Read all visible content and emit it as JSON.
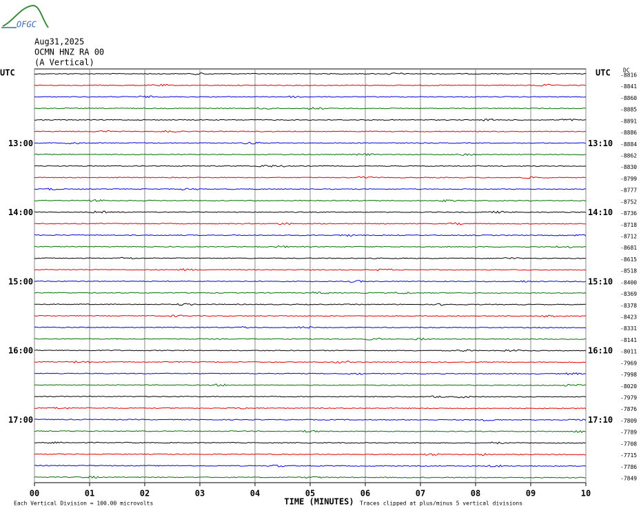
{
  "logo": "OFGC",
  "chart_data": {
    "type": "helicorder",
    "title_lines": [
      "Aug31,2025",
      "OCMN HNZ RA 00",
      "(A Vertical)"
    ],
    "left_axis_label": "UTC",
    "right_axis_label": "UTC",
    "dc_label": "DC",
    "x_label": "TIME (MINUTES)",
    "scale_note": "Each Vertical Division =  100.00 microvolts",
    "clip_note": "Traces clipped at plus/minus 5 vertical divisions",
    "xlim": [
      0,
      10
    ],
    "xticks": [
      {
        "value": 0,
        "label": "00"
      },
      {
        "value": 1,
        "label": "01"
      },
      {
        "value": 2,
        "label": "02"
      },
      {
        "value": 3,
        "label": "03"
      },
      {
        "value": 4,
        "label": "04"
      },
      {
        "value": 5,
        "label": "05"
      },
      {
        "value": 6,
        "label": "06"
      },
      {
        "value": 7,
        "label": "07"
      },
      {
        "value": 8,
        "label": "08"
      },
      {
        "value": 9,
        "label": "09"
      },
      10
    ],
    "grid": true,
    "colors": [
      "#000000",
      "#e00000",
      "#0000e0",
      "#007000"
    ],
    "left_labels": [
      null,
      null,
      null,
      null,
      null,
      null,
      "13:00",
      null,
      null,
      null,
      null,
      null,
      "14:00",
      null,
      null,
      null,
      null,
      null,
      "15:00",
      null,
      null,
      null,
      null,
      null,
      "16:00",
      null,
      null,
      null,
      null,
      null,
      "17:00",
      null,
      null,
      null,
      null,
      null
    ],
    "right_labels": [
      null,
      null,
      null,
      null,
      null,
      null,
      "13:10",
      null,
      null,
      null,
      null,
      null,
      "14:10",
      null,
      null,
      null,
      null,
      null,
      "15:10",
      null,
      null,
      null,
      null,
      null,
      "16:10",
      null,
      null,
      null,
      null,
      null,
      "17:10",
      null,
      null,
      null,
      null,
      null
    ],
    "dc": [
      -8816,
      -8841,
      -8860,
      -8885,
      -8891,
      -8886,
      -8884,
      -8862,
      -8830,
      -8799,
      -8777,
      -8752,
      -8736,
      -8718,
      -8712,
      -8681,
      -8615,
      -8518,
      -8400,
      -8369,
      -8378,
      -8423,
      -8331,
      -8141,
      -8011,
      -7969,
      -7998,
      -8020,
      -7979,
      -7876,
      -7809,
      -7789,
      -7708,
      -7715,
      -7786,
      -7849
    ]
  }
}
